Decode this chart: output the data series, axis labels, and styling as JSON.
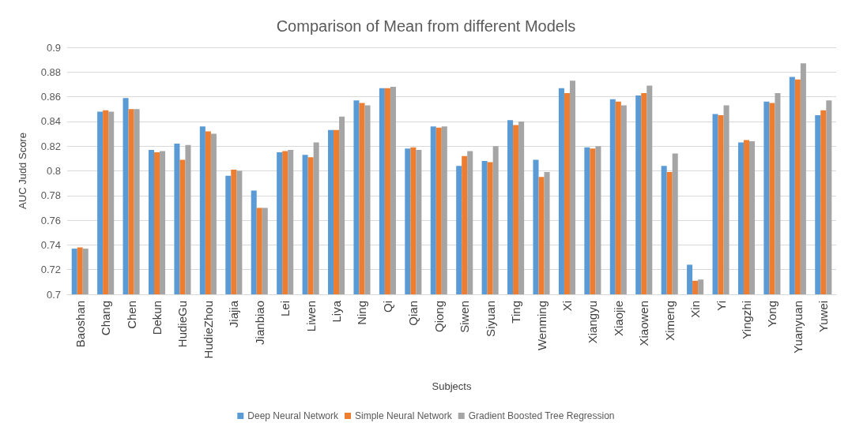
{
  "chart_data": {
    "type": "bar",
    "title": "Comparison of Mean from different Models",
    "xlabel": "Subjects",
    "ylabel": "AUC Judd Score",
    "categories": [
      "Baoshan",
      "Chang",
      "Chen",
      "Dekun",
      "HudieGu",
      "HudieZhou",
      "Jiajia",
      "Jianbiao",
      "Lei",
      "Liwen",
      "Liya",
      "Ning",
      "Qi",
      "Qian",
      "Qiong",
      "Siwen",
      "Siyuan",
      "Ting",
      "Wenming",
      "Xi",
      "Xiangyu",
      "Xiaojie",
      "Xiaowen",
      "Ximeng",
      "Xin",
      "Yi",
      "Yingzhi",
      "Yong",
      "Yuanyuan",
      "Yuwei"
    ],
    "series": [
      {
        "name": "Deep Neural Network",
        "color": "#5b9bd5",
        "values": [
          0.737,
          0.848,
          0.859,
          0.817,
          0.822,
          0.836,
          0.796,
          0.784,
          0.815,
          0.813,
          0.833,
          0.857,
          0.867,
          0.818,
          0.836,
          0.804,
          0.808,
          0.841,
          0.809,
          0.867,
          0.819,
          0.858,
          0.861,
          0.804,
          0.724,
          0.846,
          0.823,
          0.856,
          0.876,
          0.845
        ]
      },
      {
        "name": "Simple Neural Network",
        "color": "#ed7d31",
        "values": [
          0.738,
          0.849,
          0.85,
          0.815,
          0.809,
          0.832,
          0.801,
          0.77,
          0.816,
          0.811,
          0.833,
          0.855,
          0.867,
          0.819,
          0.835,
          0.812,
          0.807,
          0.837,
          0.795,
          0.863,
          0.818,
          0.856,
          0.863,
          0.799,
          0.711,
          0.845,
          0.825,
          0.855,
          0.874,
          0.849
        ]
      },
      {
        "name": "Gradient Boosted Tree Regression",
        "color": "#a5a5a5",
        "values": [
          0.737,
          0.848,
          0.85,
          0.816,
          0.821,
          0.83,
          0.8,
          0.77,
          0.817,
          0.823,
          0.844,
          0.853,
          0.868,
          0.817,
          0.836,
          0.816,
          0.82,
          0.84,
          0.799,
          0.873,
          0.82,
          0.853,
          0.869,
          0.814,
          0.712,
          0.853,
          0.824,
          0.863,
          0.887,
          0.857
        ]
      }
    ],
    "ylim": [
      0.7,
      0.9
    ],
    "yticks": [
      0.7,
      0.72,
      0.74,
      0.76,
      0.78,
      0.8,
      0.82,
      0.84,
      0.86,
      0.88,
      0.9
    ],
    "grid": "y",
    "legend": "bottom"
  }
}
